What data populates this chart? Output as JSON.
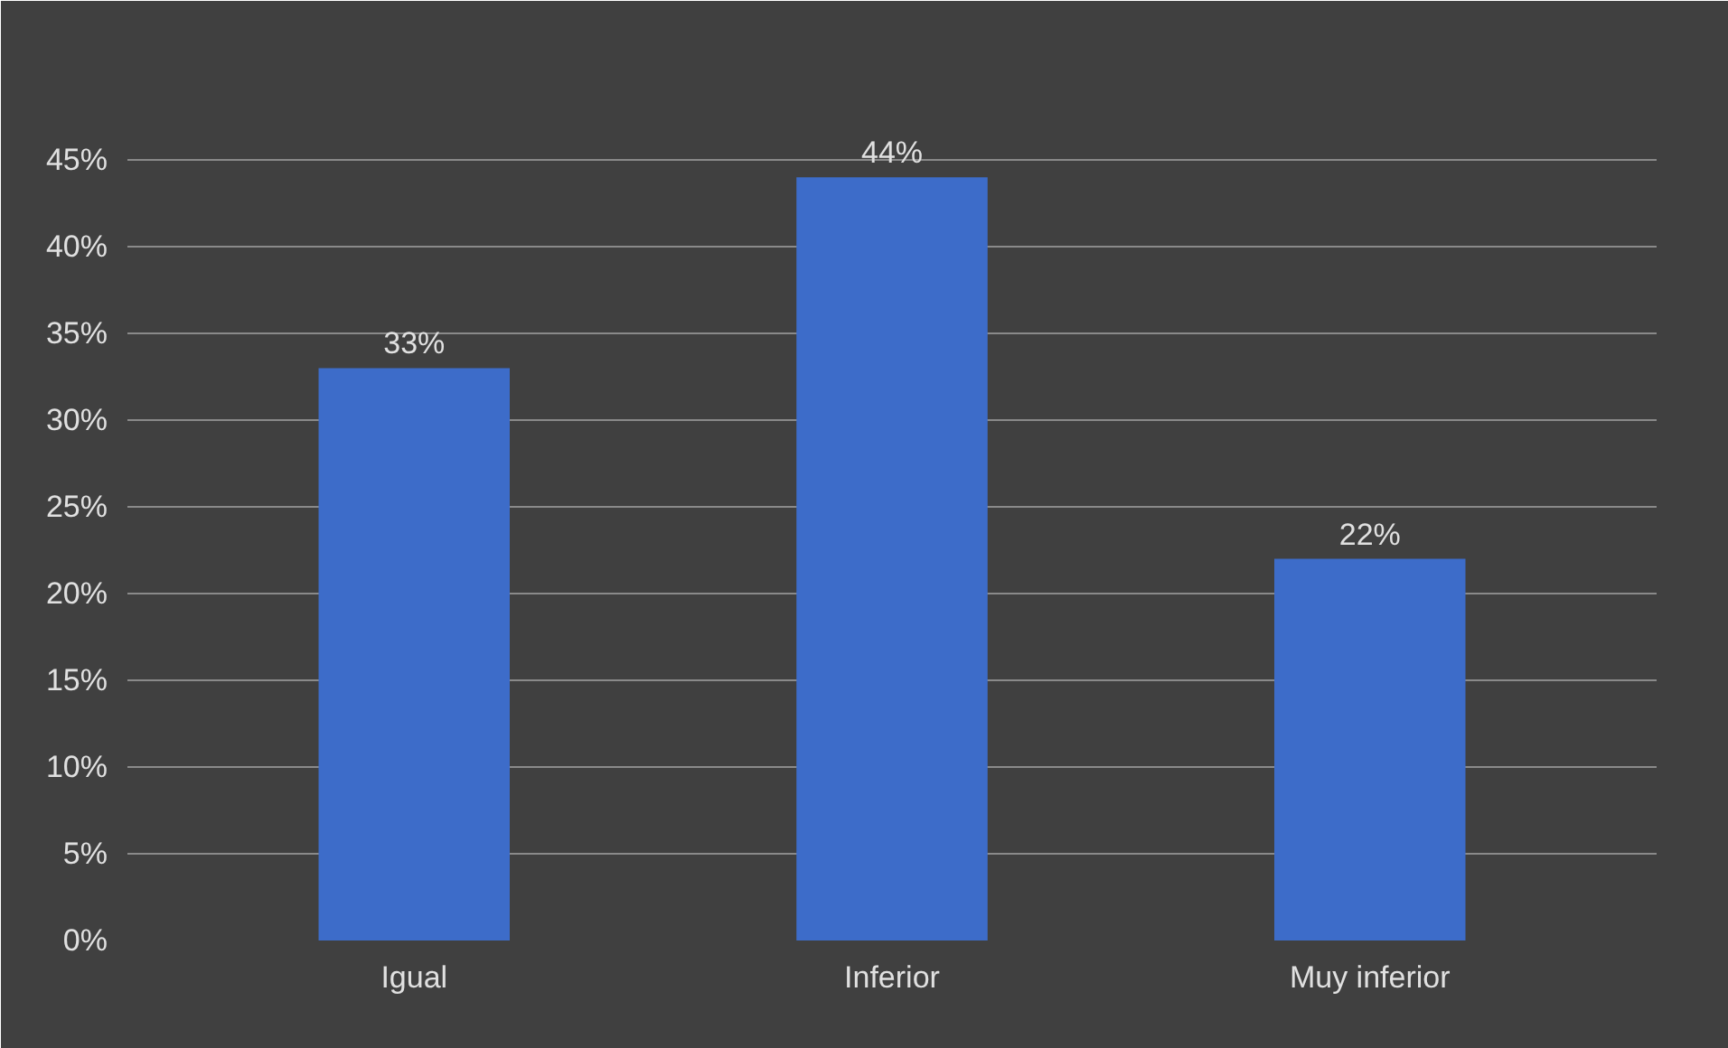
{
  "chart_data": {
    "type": "bar",
    "categories": [
      "Igual",
      "Inferior",
      "Muy inferior"
    ],
    "values": [
      33,
      44,
      22
    ],
    "value_labels": [
      "33%",
      "44%",
      "22%"
    ],
    "color": "#3d6cc9",
    "ylim": [
      0,
      50
    ],
    "yticks": [
      {
        "value": 0,
        "label": "0%"
      },
      {
        "value": 5,
        "label": "5%"
      },
      {
        "value": 10,
        "label": "10%"
      },
      {
        "value": 15,
        "label": "15%"
      },
      {
        "value": 20,
        "label": "20%"
      },
      {
        "value": 25,
        "label": "25%"
      },
      {
        "value": 30,
        "label": "30%"
      },
      {
        "value": 35,
        "label": "35%"
      },
      {
        "value": 40,
        "label": "40%"
      },
      {
        "value": 45,
        "label": "45%"
      }
    ],
    "grid": "y"
  }
}
